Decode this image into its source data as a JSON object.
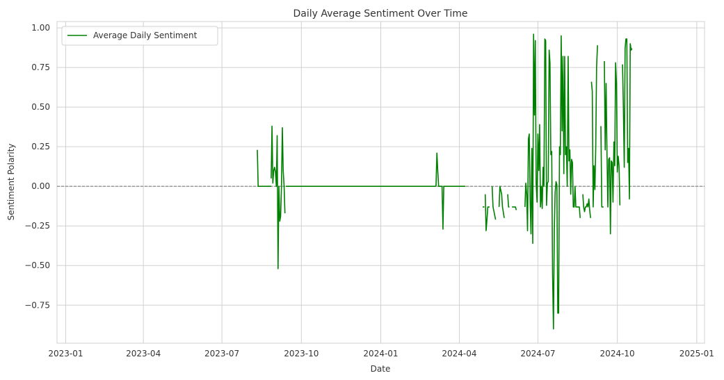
{
  "chart_data": {
    "type": "line",
    "title": "Daily Average Sentiment Over Time",
    "xlabel": "Date",
    "ylabel": "Sentiment Polarity",
    "x_axis": {
      "scale": "time",
      "range": [
        "2022-12-22",
        "2025-01-10"
      ],
      "tick_labels": [
        "2023-01",
        "2023-04",
        "2023-07",
        "2023-10",
        "2024-01",
        "2024-04",
        "2024-07",
        "2024-10",
        "2025-01"
      ]
    },
    "y_axis": {
      "range": [
        -0.99,
        1.04
      ],
      "ticks": [
        1.0,
        0.75,
        0.5,
        0.25,
        0.0,
        -0.25,
        -0.5,
        -0.75
      ],
      "tick_labels": [
        "1.00",
        "0.75",
        "0.50",
        "0.25",
        "0.00",
        "−0.25",
        "−0.50",
        "−0.75"
      ]
    },
    "grid": true,
    "legend": {
      "placement": "top-left",
      "entries": [
        "Average Daily Sentiment"
      ]
    },
    "reference_line": {
      "y": 0,
      "style": "dashed",
      "color": "#808080"
    },
    "colors": {
      "series": "#008000",
      "grid": "#d0d0d0",
      "axes": "#d0d0d0"
    },
    "series": [
      {
        "name": "Average Daily Sentiment",
        "segments": [
          [
            [
              "2023-08-11",
              0.23
            ],
            [
              "2023-08-12",
              0.0
            ],
            [
              "2023-08-20",
              0.0
            ],
            [
              "2023-08-27",
              0.0
            ]
          ],
          [
            [
              "2023-08-27",
              0.05
            ],
            [
              "2023-08-28",
              0.38
            ],
            [
              "2023-08-29",
              0.02
            ],
            [
              "2023-08-30",
              0.1
            ],
            [
              "2023-08-31",
              0.12
            ],
            [
              "2023-09-01",
              0.09
            ],
            [
              "2023-09-02",
              0.0
            ],
            [
              "2023-09-03",
              0.32
            ],
            [
              "2023-09-04",
              -0.52
            ],
            [
              "2023-09-05",
              0.0
            ],
            [
              "2023-09-06",
              -0.22
            ],
            [
              "2023-09-07",
              -0.19
            ],
            [
              "2023-09-08",
              0.0
            ],
            [
              "2023-09-09",
              0.37
            ],
            [
              "2023-09-10",
              0.1
            ],
            [
              "2023-09-11",
              0.0
            ],
            [
              "2023-09-12",
              -0.17
            ]
          ],
          [
            [
              "2023-09-13",
              0.0
            ],
            [
              "2023-11-15",
              0.0
            ],
            [
              "2024-01-15",
              0.0
            ],
            [
              "2024-03-05",
              0.0
            ]
          ],
          [
            [
              "2024-03-05",
              0.0
            ],
            [
              "2024-03-06",
              0.21
            ],
            [
              "2024-03-07",
              0.1
            ],
            [
              "2024-03-08",
              0.0
            ],
            [
              "2024-03-12",
              0.0
            ],
            [
              "2024-03-13",
              -0.27
            ],
            [
              "2024-03-14",
              0.0
            ],
            [
              "2024-04-08",
              0.0
            ]
          ],
          [
            [
              "2024-04-28",
              -0.13
            ],
            [
              "2024-04-30",
              -0.13
            ]
          ],
          [
            [
              "2024-05-01",
              -0.05
            ],
            [
              "2024-05-02",
              -0.28
            ],
            [
              "2024-05-03",
              -0.21
            ],
            [
              "2024-05-04",
              -0.13
            ],
            [
              "2024-05-06",
              -0.13
            ]
          ],
          [
            [
              "2024-05-09",
              0.0
            ],
            [
              "2024-05-10",
              -0.13
            ],
            [
              "2024-05-13",
              -0.21
            ]
          ],
          [
            [
              "2024-05-17",
              -0.13
            ],
            [
              "2024-05-18",
              0.0
            ],
            [
              "2024-05-20",
              -0.05
            ],
            [
              "2024-05-21",
              -0.13
            ],
            [
              "2024-05-23",
              -0.2
            ]
          ],
          [
            [
              "2024-05-27",
              -0.05
            ],
            [
              "2024-05-28",
              -0.13
            ],
            [
              "2024-05-29",
              -0.13
            ]
          ],
          [
            [
              "2024-06-01",
              -0.13
            ],
            [
              "2024-06-03",
              -0.13
            ],
            [
              "2024-06-04",
              -0.13
            ],
            [
              "2024-06-05",
              -0.13
            ],
            [
              "2024-06-06",
              -0.15
            ]
          ],
          [
            [
              "2024-06-16",
              -0.13
            ],
            [
              "2024-06-17",
              0.02
            ],
            [
              "2024-06-18",
              -0.05
            ],
            [
              "2024-06-19",
              -0.28
            ],
            [
              "2024-06-20",
              0.3
            ],
            [
              "2024-06-21",
              0.33
            ],
            [
              "2024-06-22",
              -0.1
            ],
            [
              "2024-06-23",
              -0.3
            ],
            [
              "2024-06-24",
              0.24
            ],
            [
              "2024-06-25",
              -0.36
            ],
            [
              "2024-06-26",
              0.96
            ],
            [
              "2024-06-27",
              0.45
            ],
            [
              "2024-06-28",
              0.92
            ],
            [
              "2024-06-29",
              0.02
            ],
            [
              "2024-06-30",
              -0.1
            ],
            [
              "2024-07-01",
              0.33
            ],
            [
              "2024-07-02",
              0.1
            ],
            [
              "2024-07-03",
              0.39
            ],
            [
              "2024-07-04",
              -0.13
            ],
            [
              "2024-07-05",
              0.0
            ],
            [
              "2024-07-06",
              -0.14
            ],
            [
              "2024-07-07",
              0.12
            ],
            [
              "2024-07-08",
              0.0
            ],
            [
              "2024-07-09",
              0.93
            ],
            [
              "2024-07-10",
              0.92
            ],
            [
              "2024-07-11",
              -0.12
            ],
            [
              "2024-07-12",
              0.02
            ],
            [
              "2024-07-13",
              0.03
            ],
            [
              "2024-07-14",
              0.86
            ],
            [
              "2024-07-15",
              0.78
            ],
            [
              "2024-07-16",
              0.2
            ],
            [
              "2024-07-17",
              0.22
            ],
            [
              "2024-07-18",
              -0.55
            ],
            [
              "2024-07-19",
              -0.9
            ],
            [
              "2024-07-20",
              -0.28
            ],
            [
              "2024-07-21",
              -0.04
            ],
            [
              "2024-07-22",
              0.03
            ],
            [
              "2024-07-23",
              0.01
            ],
            [
              "2024-07-24",
              -0.8
            ],
            [
              "2024-07-25",
              -0.8
            ],
            [
              "2024-07-26",
              0.25
            ],
            [
              "2024-07-27",
              0.2
            ],
            [
              "2024-07-28",
              0.95
            ],
            [
              "2024-07-29",
              0.35
            ],
            [
              "2024-07-30",
              0.82
            ],
            [
              "2024-07-31",
              0.08
            ],
            [
              "2024-08-01",
              0.82
            ],
            [
              "2024-08-02",
              0.2
            ],
            [
              "2024-08-03",
              0.25
            ],
            [
              "2024-08-04",
              0.0
            ],
            [
              "2024-08-05",
              0.82
            ],
            [
              "2024-08-06",
              0.16
            ],
            [
              "2024-08-07",
              0.23
            ],
            [
              "2024-08-08",
              -0.05
            ],
            [
              "2024-08-09",
              0.17
            ],
            [
              "2024-08-10",
              0.15
            ],
            [
              "2024-08-11",
              -0.13
            ],
            [
              "2024-08-12",
              -0.13
            ],
            [
              "2024-08-13",
              0.0
            ],
            [
              "2024-08-14",
              -0.13
            ],
            [
              "2024-08-15",
              -0.13
            ],
            [
              "2024-08-16",
              -0.13
            ],
            [
              "2024-08-17",
              -0.13
            ],
            [
              "2024-08-18",
              -0.13
            ],
            [
              "2024-08-19",
              -0.2
            ]
          ],
          [
            [
              "2024-08-22",
              -0.05
            ],
            [
              "2024-08-23",
              -0.13
            ],
            [
              "2024-08-24",
              -0.16
            ],
            [
              "2024-08-25",
              -0.13
            ],
            [
              "2024-08-26",
              -0.13
            ],
            [
              "2024-08-27",
              -0.11
            ],
            [
              "2024-08-28",
              -0.13
            ],
            [
              "2024-08-29",
              -0.08
            ],
            [
              "2024-08-30",
              -0.15
            ],
            [
              "2024-08-31",
              -0.2
            ]
          ],
          [
            [
              "2024-09-01",
              0.66
            ],
            [
              "2024-09-02",
              0.6
            ],
            [
              "2024-09-03",
              -0.13
            ],
            [
              "2024-09-04",
              0.13
            ],
            [
              "2024-09-05",
              -0.02
            ],
            [
              "2024-09-06",
              0.25
            ],
            [
              "2024-09-07",
              0.75
            ],
            [
              "2024-09-08",
              0.89
            ]
          ],
          [
            [
              "2024-09-12",
              0.38
            ],
            [
              "2024-09-13",
              -0.13
            ],
            [
              "2024-09-15",
              -0.13
            ]
          ],
          [
            [
              "2024-09-16",
              0.79
            ],
            [
              "2024-09-17",
              0.23
            ],
            [
              "2024-09-18",
              0.65
            ],
            [
              "2024-09-19",
              0.22
            ],
            [
              "2024-09-20",
              -0.13
            ],
            [
              "2024-09-21",
              0.17
            ],
            [
              "2024-09-22",
              0.18
            ],
            [
              "2024-09-23",
              -0.3
            ],
            [
              "2024-09-24",
              0.16
            ],
            [
              "2024-09-25",
              0.15
            ],
            [
              "2024-09-26",
              -0.1
            ],
            [
              "2024-09-27",
              0.28
            ],
            [
              "2024-09-28",
              0.13
            ],
            [
              "2024-09-29",
              0.78
            ],
            [
              "2024-09-30",
              0.65
            ],
            [
              "2024-10-01",
              0.09
            ],
            [
              "2024-10-02",
              0.19
            ],
            [
              "2024-10-03",
              0.13
            ],
            [
              "2024-10-04",
              -0.12
            ]
          ],
          [
            [
              "2024-10-07",
              0.77
            ],
            [
              "2024-10-08",
              0.5
            ],
            [
              "2024-10-09",
              0.12
            ],
            [
              "2024-10-10",
              0.87
            ],
            [
              "2024-10-11",
              0.93
            ],
            [
              "2024-10-12",
              0.93
            ],
            [
              "2024-10-13",
              0.15
            ],
            [
              "2024-10-14",
              0.24
            ],
            [
              "2024-10-15",
              -0.08
            ],
            [
              "2024-10-16",
              0.9
            ],
            [
              "2024-10-17",
              0.86
            ],
            [
              "2024-10-18",
              0.87
            ]
          ]
        ]
      }
    ]
  }
}
